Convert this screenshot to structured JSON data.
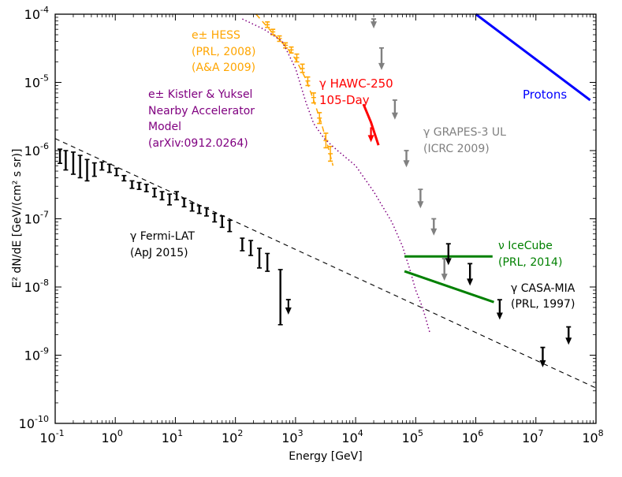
{
  "chart_data": {
    "type": "scatter",
    "title": "",
    "xlabel": "Energy [GeV]",
    "ylabel": "E² dN/dE  [GeV/(cm² s sr)]",
    "xscale": "log",
    "yscale": "log",
    "xlim": [
      0.1,
      100000000
    ],
    "ylim": [
      1e-10,
      0.0001
    ],
    "x_ticks": [
      {
        "value": 0.1,
        "base": "10",
        "exp": "-1"
      },
      {
        "value": 1,
        "base": "10",
        "exp": "0"
      },
      {
        "value": 10,
        "base": "10",
        "exp": "1"
      },
      {
        "value": 100,
        "base": "10",
        "exp": "2"
      },
      {
        "value": 1000,
        "base": "10",
        "exp": "3"
      },
      {
        "value": 10000,
        "base": "10",
        "exp": "4"
      },
      {
        "value": 100000,
        "base": "10",
        "exp": "5"
      },
      {
        "value": 1000000,
        "base": "10",
        "exp": "6"
      },
      {
        "value": 10000000,
        "base": "10",
        "exp": "7"
      },
      {
        "value": 100000000,
        "base": "10",
        "exp": "8"
      }
    ],
    "y_ticks": [
      {
        "value": 1e-10,
        "base": "10",
        "exp": "-10"
      },
      {
        "value": 1e-09,
        "base": "10",
        "exp": "-9"
      },
      {
        "value": 1e-08,
        "base": "10",
        "exp": "-8"
      },
      {
        "value": 1e-07,
        "base": "10",
        "exp": "-7"
      },
      {
        "value": 1e-06,
        "base": "10",
        "exp": "-6"
      },
      {
        "value": 1e-05,
        "base": "10",
        "exp": "-5"
      },
      {
        "value": 0.0001,
        "base": "10",
        "exp": "-4"
      }
    ],
    "colors": {
      "fermi": "#000000",
      "hess": "#ffa500",
      "kistler": "#800080",
      "hawc": "#ff0000",
      "grapes": "#808080",
      "icecube": "#008000",
      "casa": "#000000",
      "protons": "#0000ff"
    },
    "series": [
      {
        "name": "Fermi-LAT",
        "kind": "errorbars",
        "color": "#000000",
        "points": [
          {
            "x": 0.12,
            "ylo": 6.5e-07,
            "yhi": 1.05e-06
          },
          {
            "x": 0.15,
            "ylo": 5.2e-07,
            "yhi": 1e-06
          },
          {
            "x": 0.2,
            "ylo": 4.5e-07,
            "yhi": 9.5e-07
          },
          {
            "x": 0.26,
            "ylo": 4e-07,
            "yhi": 8.5e-07
          },
          {
            "x": 0.34,
            "ylo": 3.6e-07,
            "yhi": 7.4e-07
          },
          {
            "x": 0.45,
            "ylo": 4.2e-07,
            "yhi": 6.6e-07
          },
          {
            "x": 0.6,
            "ylo": 5.2e-07,
            "yhi": 6.8e-07
          },
          {
            "x": 0.8,
            "ylo": 4.8e-07,
            "yhi": 6.3e-07
          },
          {
            "x": 1.05,
            "ylo": 4.3e-07,
            "yhi": 5.5e-07
          },
          {
            "x": 1.4,
            "ylo": 3.6e-07,
            "yhi": 4.3e-07
          },
          {
            "x": 1.9,
            "ylo": 2.8e-07,
            "yhi": 3.6e-07
          },
          {
            "x": 2.5,
            "ylo": 2.7e-07,
            "yhi": 3.4e-07
          },
          {
            "x": 3.3,
            "ylo": 2.5e-07,
            "yhi": 3.2e-07
          },
          {
            "x": 4.5,
            "ylo": 2.1e-07,
            "yhi": 2.8e-07
          },
          {
            "x": 6.0,
            "ylo": 1.9e-07,
            "yhi": 2.5e-07
          },
          {
            "x": 8.0,
            "ylo": 1.6e-07,
            "yhi": 2.3e-07
          },
          {
            "x": 10.5,
            "ylo": 1.9e-07,
            "yhi": 2.5e-07
          },
          {
            "x": 14,
            "ylo": 1.5e-07,
            "yhi": 2e-07
          },
          {
            "x": 19,
            "ylo": 1.3e-07,
            "yhi": 1.7e-07
          },
          {
            "x": 25,
            "ylo": 1.2e-07,
            "yhi": 1.55e-07
          },
          {
            "x": 33,
            "ylo": 1.1e-07,
            "yhi": 1.45e-07
          },
          {
            "x": 45,
            "ylo": 9e-08,
            "yhi": 1.2e-07
          },
          {
            "x": 60,
            "ylo": 7.5e-08,
            "yhi": 1.1e-07
          },
          {
            "x": 80,
            "ylo": 6.5e-08,
            "yhi": 9.5e-08
          },
          {
            "x": 130,
            "ylo": 3.4e-08,
            "yhi": 5.2e-08
          },
          {
            "x": 180,
            "ylo": 2.9e-08,
            "yhi": 4.8e-08
          },
          {
            "x": 250,
            "ylo": 1.9e-08,
            "yhi": 3.7e-08
          },
          {
            "x": 340,
            "ylo": 1.7e-08,
            "yhi": 3.1e-08
          },
          {
            "x": 560,
            "ylo": 2.8e-09,
            "yhi": 1.8e-08
          }
        ],
        "upper_limits": [
          {
            "x": 760,
            "y": 4.5e-09
          }
        ]
      },
      {
        "name": "HESS electrons",
        "kind": "dashed-fit-with-errorbars",
        "color": "#ffa500",
        "curve": [
          [
            220,
            0.0001
          ],
          [
            400,
            5.5e-05
          ],
          [
            700,
            3.3e-05
          ],
          [
            1000,
            2.2e-05
          ],
          [
            1500,
            1.1e-05
          ],
          [
            2000,
            5.5e-06
          ],
          [
            2700,
            2.5e-06
          ],
          [
            3500,
            1.1e-06
          ],
          [
            4200,
            6e-07
          ]
        ],
        "points": [
          {
            "x": 340,
            "y": 7e-05,
            "ylo": 6.4e-05,
            "yhi": 7.7e-05
          },
          {
            "x": 420,
            "y": 5.5e-05,
            "ylo": 5e-05,
            "yhi": 6e-05
          },
          {
            "x": 540,
            "y": 4.4e-05,
            "ylo": 4e-05,
            "yhi": 4.8e-05
          },
          {
            "x": 680,
            "y": 3.5e-05,
            "ylo": 3.2e-05,
            "yhi": 3.8e-05
          },
          {
            "x": 850,
            "y": 3e-05,
            "ylo": 2.7e-05,
            "yhi": 3.3e-05
          },
          {
            "x": 1050,
            "y": 2.3e-05,
            "ylo": 2e-05,
            "yhi": 2.6e-05
          },
          {
            "x": 1300,
            "y": 1.6e-05,
            "ylo": 1.4e-05,
            "yhi": 1.85e-05
          },
          {
            "x": 1600,
            "y": 1.05e-05,
            "ylo": 9e-06,
            "yhi": 1.2e-05
          },
          {
            "x": 2000,
            "y": 6e-06,
            "ylo": 5e-06,
            "yhi": 7e-06
          },
          {
            "x": 2500,
            "y": 3e-06,
            "ylo": 2.5e-06,
            "yhi": 3.6e-06
          },
          {
            "x": 3200,
            "y": 1.4e-06,
            "ylo": 1.1e-06,
            "yhi": 1.8e-06
          },
          {
            "x": 3800,
            "y": 9e-07,
            "ylo": 7e-07,
            "yhi": 1.15e-06
          }
        ]
      },
      {
        "name": "Kistler & Yuksel model",
        "kind": "dotted-line",
        "color": "#800080",
        "curve": [
          [
            130,
            8.5e-05
          ],
          [
            300,
            6e-05
          ],
          [
            600,
            4e-05
          ],
          [
            1000,
            1.6e-05
          ],
          [
            1500,
            5e-06
          ],
          [
            2000,
            2.5e-06
          ],
          [
            3000,
            1.5e-06
          ],
          [
            5000,
            1e-06
          ],
          [
            10000,
            6e-07
          ],
          [
            20000,
            2.5e-07
          ],
          [
            40000,
            9e-08
          ],
          [
            60000,
            4e-08
          ],
          [
            80000,
            1.8e-08
          ],
          [
            100000,
            9e-09
          ],
          [
            130000,
            5e-09
          ],
          [
            170000,
            2.2e-09
          ]
        ]
      },
      {
        "name": "HAWC-250 105-Day",
        "kind": "limit-line",
        "color": "#ff0000",
        "curve": [
          [
            13500,
            4.8e-06
          ],
          [
            18000,
            2.6e-06
          ],
          [
            24000,
            1.2e-06
          ]
        ],
        "upper_limits": [
          {
            "x": 18000,
            "y": 2.2e-06
          }
        ]
      },
      {
        "name": "GRAPES-3 UL",
        "kind": "upper-limits",
        "color": "#808080",
        "points": [
          {
            "x": 20000,
            "ylo": 6.5e-05,
            "yhi": 8.5e-05
          },
          {
            "x": 27000,
            "ylo": 1.6e-05,
            "yhi": 3.2e-05
          },
          {
            "x": 45000,
            "ylo": 3e-06,
            "yhi": 5.5e-06
          },
          {
            "x": 70000,
            "ylo": 6e-07,
            "yhi": 1e-06
          },
          {
            "x": 120000,
            "ylo": 1.5e-07,
            "yhi": 2.7e-07
          },
          {
            "x": 200000,
            "ylo": 6e-08,
            "yhi": 1e-07
          },
          {
            "x": 300000,
            "ylo": 1.3e-08,
            "yhi": 2.6e-08
          }
        ]
      },
      {
        "name": "IceCube",
        "kind": "lines",
        "color": "#008000",
        "lines": [
          [
            [
              65000,
              2.8e-08
            ],
            [
              1900000,
              2.8e-08
            ]
          ],
          [
            [
              65000,
              1.7e-08
            ],
            [
              2000000,
              6e-09
            ]
          ]
        ]
      },
      {
        "name": "CASA-MIA",
        "kind": "upper-limits",
        "color": "#000000",
        "points": [
          {
            "x": 350000,
            "ylo": 2.2e-08,
            "yhi": 4.3e-08
          },
          {
            "x": 800000,
            "ylo": 1.1e-08,
            "yhi": 2.2e-08
          },
          {
            "x": 2500000,
            "ylo": 3.5e-09,
            "yhi": 6.5e-09
          },
          {
            "x": 13000000,
            "ylo": 7e-10,
            "yhi": 1.3e-09
          },
          {
            "x": 35000000,
            "ylo": 1.5e-09,
            "yhi": 2.6e-09
          }
        ]
      },
      {
        "name": "Protons",
        "kind": "solid-line",
        "color": "#0000ff",
        "curve": [
          [
            1000000,
            0.0001
          ],
          [
            80000000,
            5.5e-06
          ]
        ]
      },
      {
        "name": "Fermi power-law fit",
        "kind": "dashed-line",
        "color": "#000000",
        "curve": [
          [
            0.1,
            1.5e-06
          ],
          [
            100000000,
            3.3e-10
          ]
        ]
      }
    ],
    "annotations": {
      "hess": [
        "e± HESS",
        "(PRL, 2008)",
        "(A&A 2009)"
      ],
      "kistler": [
        "e± Kistler & Yuksel",
        "Nearby Accelerator",
        "Model",
        "(arXiv:0912.0264)"
      ],
      "hawc": [
        "γ HAWC-250",
        "105-Day"
      ],
      "grapes": [
        "γ GRAPES-3 UL",
        "(ICRC 2009)"
      ],
      "fermi": [
        "γ Fermi-LAT",
        "(ApJ 2015)"
      ],
      "icecube": [
        "ν IceCube",
        "(PRL, 2014)"
      ],
      "casa": [
        "γ CASA-MIA",
        "(PRL, 1997)"
      ],
      "protons": [
        "Protons"
      ]
    }
  }
}
